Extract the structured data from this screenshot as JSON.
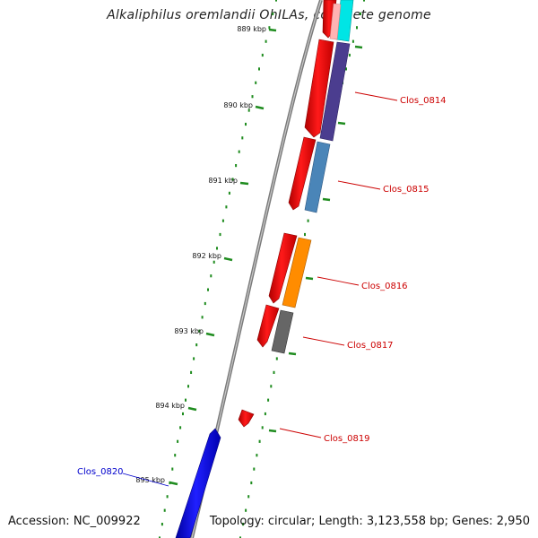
{
  "title": "Alkaliphilus oremlandii OhILAs, complete genome",
  "footer": {
    "accession": "Accession: NC_009922",
    "topology": "Topology: circular; Length: 3,123,558 bp; Genes: 2,950"
  },
  "colors": {
    "backbone": "#8c8c8c",
    "tick_dots": "#1f8c1f",
    "forward_cds": "#ff0000",
    "label_red": "#cc0000",
    "label_blue": "#0000cc",
    "blue_gene": "#0000ff",
    "cyan": "#00e5e5",
    "purple": "#4b3d8f",
    "steelblue": "#4a85b8",
    "orange": "#ff8c00",
    "gray": "#666666"
  },
  "ticks": [
    {
      "label": "889 kbp"
    },
    {
      "label": "890 kbp"
    },
    {
      "label": "891 kbp"
    },
    {
      "label": "892 kbp"
    },
    {
      "label": "893 kbp"
    },
    {
      "label": "894 kbp"
    },
    {
      "label": "895 kbp"
    }
  ],
  "genes": [
    {
      "label": "Clos_0814"
    },
    {
      "label": "Clos_0815"
    },
    {
      "label": "Clos_0816"
    },
    {
      "label": "Clos_0817"
    },
    {
      "label": "Clos_0819"
    },
    {
      "label": "Clos_0820"
    }
  ]
}
